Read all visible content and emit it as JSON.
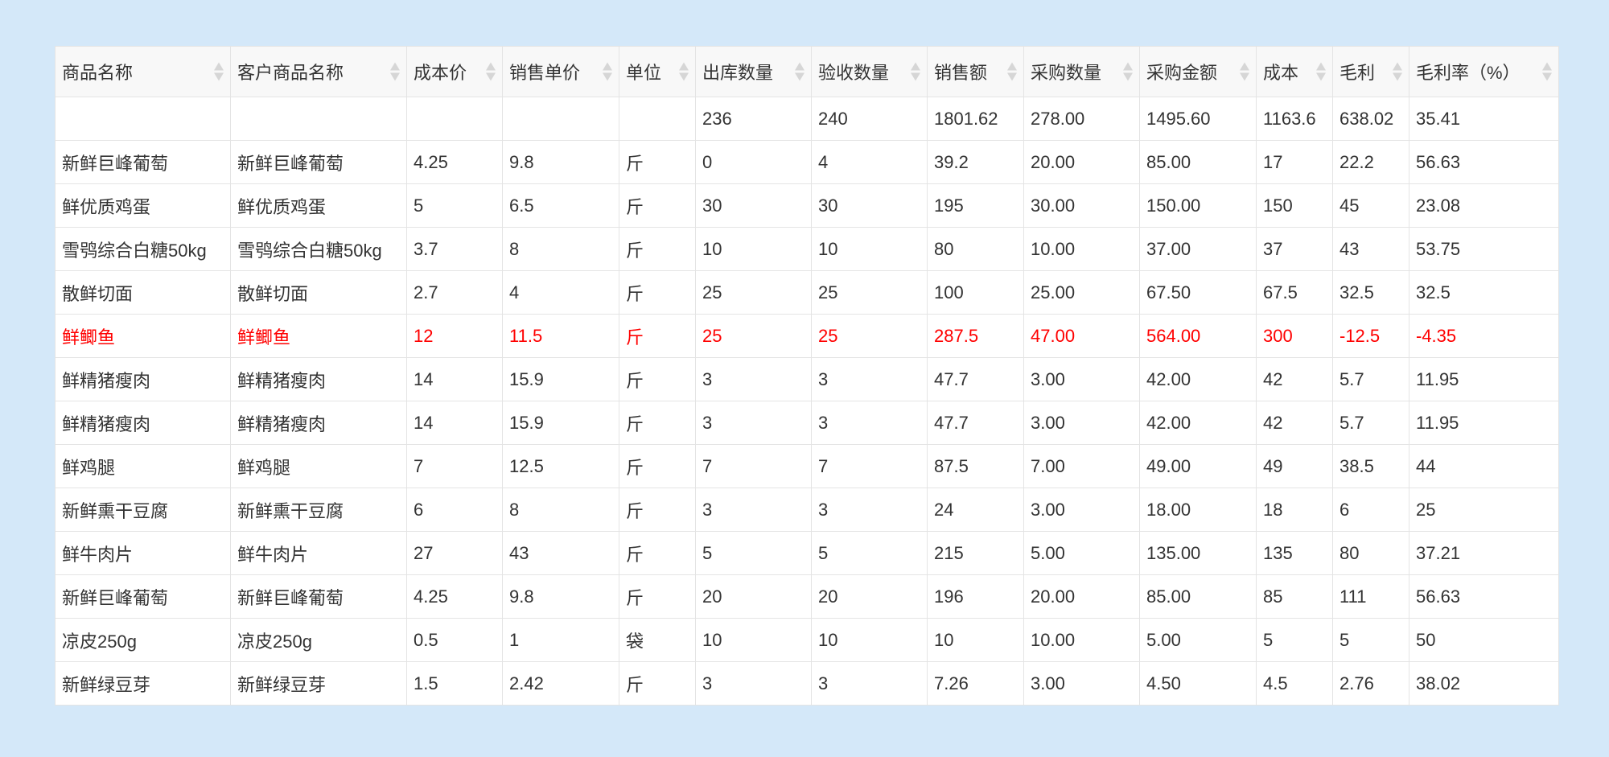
{
  "table": {
    "columns": [
      "商品名称",
      "客户商品名称",
      "成本价",
      "销售单价",
      "单位",
      "出库数量",
      "验收数量",
      "销售额",
      "采购数量",
      "采购金额",
      "成本",
      "毛利",
      "毛利率（%）"
    ],
    "totals": [
      "",
      "",
      "",
      "",
      "",
      "236",
      "240",
      "1801.62",
      "278.00",
      "1495.60",
      "1163.6",
      "638.02",
      "35.41"
    ],
    "rows": [
      {
        "cells": [
          "新鲜巨峰葡萄",
          "新鲜巨峰葡萄",
          "4.25",
          "9.8",
          "斤",
          "0",
          "4",
          "39.2",
          "20.00",
          "85.00",
          "17",
          "22.2",
          "56.63"
        ],
        "negative": false
      },
      {
        "cells": [
          "鲜优质鸡蛋",
          "鲜优质鸡蛋",
          "5",
          "6.5",
          "斤",
          "30",
          "30",
          "195",
          "30.00",
          "150.00",
          "150",
          "45",
          "23.08"
        ],
        "negative": false
      },
      {
        "cells": [
          "雪鸮综合白糖50kg",
          "雪鸮综合白糖50kg",
          "3.7",
          "8",
          "斤",
          "10",
          "10",
          "80",
          "10.00",
          "37.00",
          "37",
          "43",
          "53.75"
        ],
        "negative": false
      },
      {
        "cells": [
          "散鲜切面",
          "散鲜切面",
          "2.7",
          "4",
          "斤",
          "25",
          "25",
          "100",
          "25.00",
          "67.50",
          "67.5",
          "32.5",
          "32.5"
        ],
        "negative": false
      },
      {
        "cells": [
          "鲜鲫鱼",
          "鲜鲫鱼",
          "12",
          "11.5",
          "斤",
          "25",
          "25",
          "287.5",
          "47.00",
          "564.00",
          "300",
          "-12.5",
          "-4.35"
        ],
        "negative": true
      },
      {
        "cells": [
          "鲜精猪瘦肉",
          "鲜精猪瘦肉",
          "14",
          "15.9",
          "斤",
          "3",
          "3",
          "47.7",
          "3.00",
          "42.00",
          "42",
          "5.7",
          "11.95"
        ],
        "negative": false
      },
      {
        "cells": [
          "鲜精猪瘦肉",
          "鲜精猪瘦肉",
          "14",
          "15.9",
          "斤",
          "3",
          "3",
          "47.7",
          "3.00",
          "42.00",
          "42",
          "5.7",
          "11.95"
        ],
        "negative": false
      },
      {
        "cells": [
          "鲜鸡腿",
          "鲜鸡腿",
          "7",
          "12.5",
          "斤",
          "7",
          "7",
          "87.5",
          "7.00",
          "49.00",
          "49",
          "38.5",
          "44"
        ],
        "negative": false
      },
      {
        "cells": [
          "新鲜熏干豆腐",
          "新鲜熏干豆腐",
          "6",
          "8",
          "斤",
          "3",
          "3",
          "24",
          "3.00",
          "18.00",
          "18",
          "6",
          "25"
        ],
        "negative": false
      },
      {
        "cells": [
          "鲜牛肉片",
          "鲜牛肉片",
          "27",
          "43",
          "斤",
          "5",
          "5",
          "215",
          "5.00",
          "135.00",
          "135",
          "80",
          "37.21"
        ],
        "negative": false
      },
      {
        "cells": [
          "新鲜巨峰葡萄",
          "新鲜巨峰葡萄",
          "4.25",
          "9.8",
          "斤",
          "20",
          "20",
          "196",
          "20.00",
          "85.00",
          "85",
          "111",
          "56.63"
        ],
        "negative": false
      },
      {
        "cells": [
          "凉皮250g",
          "凉皮250g",
          "0.5",
          "1",
          "袋",
          "10",
          "10",
          "10",
          "10.00",
          "5.00",
          "5",
          "5",
          "50"
        ],
        "negative": false
      },
      {
        "cells": [
          "新鲜绿豆芽",
          "新鲜绿豆芽",
          "1.5",
          "2.42",
          "斤",
          "3",
          "3",
          "7.26",
          "3.00",
          "4.50",
          "4.5",
          "2.76",
          "38.02"
        ],
        "negative": false
      }
    ],
    "negative_color": "#ff0000",
    "sort_icon": "sort-up-down-icon"
  }
}
